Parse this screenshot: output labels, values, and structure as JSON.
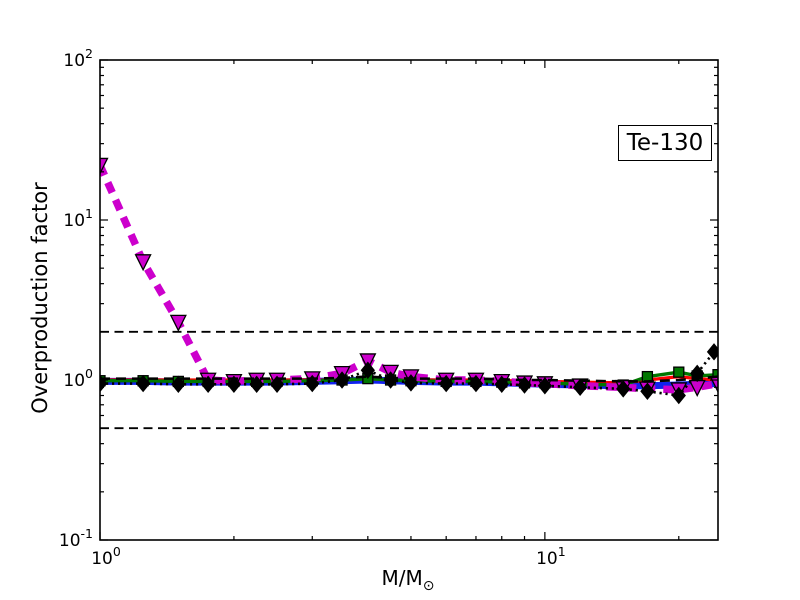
{
  "title_box": {
    "label": "Te-130"
  },
  "axes": {
    "ylabel": "Overproduction factor",
    "xlabel_main": "M/M",
    "xlabel_subscript": "⊙",
    "x_tick_labels": [
      {
        "base": "10",
        "exp": "0",
        "value": 1
      },
      {
        "base": "10",
        "exp": "1",
        "value": 10
      }
    ],
    "y_tick_labels": [
      {
        "base": "10",
        "exp": "2",
        "value": 100
      },
      {
        "base": "10",
        "exp": "1",
        "value": 10
      },
      {
        "base": "10",
        "exp": "0",
        "value": 1
      },
      {
        "base": "10",
        "exp": "-1",
        "value": 0.1
      }
    ]
  },
  "chart_data": {
    "type": "line",
    "title": "Te-130",
    "xlabel": "M/M_sun",
    "ylabel": "Overproduction factor",
    "xscale": "log",
    "yscale": "log",
    "xlim": [
      1,
      24.5
    ],
    "ylim": [
      0.1,
      100
    ],
    "grid": false,
    "legend": "none",
    "frame_color": "#000000",
    "reference_lines": [
      {
        "label": "upper-factor-2-band",
        "y": 2.0,
        "color": "#000000",
        "style": "dashed",
        "linewidth": 1.8
      },
      {
        "label": "lower-factor-2-band",
        "y": 0.5,
        "color": "#000000",
        "style": "dashed",
        "linewidth": 1.8
      }
    ],
    "x_masses": [
      1,
      1.25,
      1.5,
      1.75,
      2,
      2.25,
      2.5,
      3,
      3.5,
      4,
      4.5,
      5,
      6,
      7,
      8,
      9,
      10,
      12,
      15,
      17,
      20,
      22,
      24.5
    ],
    "series": [
      {
        "name": "blue-thick-solid",
        "color": "#1122ee",
        "linewidth": 7,
        "dash": null,
        "marker": "none",
        "markersize": 0,
        "values": [
          0.98,
          0.98,
          0.97,
          0.97,
          0.97,
          0.97,
          0.97,
          0.98,
          0.99,
          1.0,
          0.99,
          0.98,
          0.97,
          0.97,
          0.96,
          0.95,
          0.94,
          0.93,
          0.92,
          0.92,
          0.93,
          0.94,
          0.95
        ]
      },
      {
        "name": "red-solid",
        "color": "#ff0000",
        "linewidth": 3.2,
        "dash": null,
        "marker": "none",
        "markersize": 0,
        "values": [
          1.0,
          1.0,
          1.0,
          1.0,
          1.0,
          1.0,
          1.0,
          1.0,
          1.0,
          1.02,
          1.0,
          1.0,
          1.0,
          1.0,
          0.99,
          0.99,
          0.98,
          0.97,
          0.96,
          1.0,
          1.05,
          1.02,
          1.0
        ]
      },
      {
        "name": "green-solid-squares",
        "color": "#007700",
        "linewidth": 3.4,
        "dash": null,
        "marker": "square",
        "markersize": 10,
        "values": [
          0.99,
          0.99,
          0.98,
          0.98,
          0.98,
          0.98,
          0.98,
          0.99,
          1.0,
          1.02,
          1.0,
          0.99,
          0.98,
          0.98,
          0.97,
          0.96,
          0.96,
          0.94,
          0.93,
          1.05,
          1.12,
          1.06,
          1.08
        ]
      },
      {
        "name": "magenta-thick-dashed-triangles",
        "color": "#cc00cc",
        "linewidth": 7.5,
        "dash": [
          11,
          8
        ],
        "marker": "triangle-down",
        "markersize": 15,
        "values": [
          22,
          5.5,
          2.3,
          1.0,
          0.98,
          1.0,
          1.0,
          1.02,
          1.1,
          1.32,
          1.12,
          1.05,
          1.0,
          1.0,
          0.98,
          0.96,
          0.95,
          0.92,
          0.9,
          0.88,
          0.87,
          0.9,
          0.95
        ]
      },
      {
        "name": "black-dashed",
        "color": "#000000",
        "linewidth": 2.6,
        "dash": [
          10,
          6
        ],
        "marker": "none",
        "markersize": 0,
        "values": [
          1.02,
          1.02,
          1.02,
          1.02,
          1.02,
          1.02,
          1.02,
          1.02,
          1.03,
          1.05,
          1.03,
          1.02,
          1.02,
          1.02,
          1.01,
          1.0,
          1.0,
          0.99,
          0.98,
          0.98,
          1.0,
          1.02,
          1.05
        ]
      },
      {
        "name": "black-dotted-diamonds",
        "color": "#000000",
        "linewidth": 2.6,
        "dash": [
          2.2,
          3.8
        ],
        "marker": "diamond",
        "markersize": 14,
        "x": [
          1,
          1.25,
          1.5,
          1.75,
          2,
          2.25,
          2.5,
          3,
          3.5,
          4,
          4.5,
          5,
          6,
          7,
          8,
          9,
          10,
          12,
          15,
          17,
          20,
          22,
          24
        ],
        "values": [
          0.95,
          0.95,
          0.94,
          0.94,
          0.94,
          0.94,
          0.94,
          0.95,
          1.0,
          1.15,
          1.0,
          0.96,
          0.95,
          0.95,
          0.94,
          0.93,
          0.92,
          0.9,
          0.88,
          0.85,
          0.8,
          1.1,
          1.5
        ]
      }
    ]
  }
}
